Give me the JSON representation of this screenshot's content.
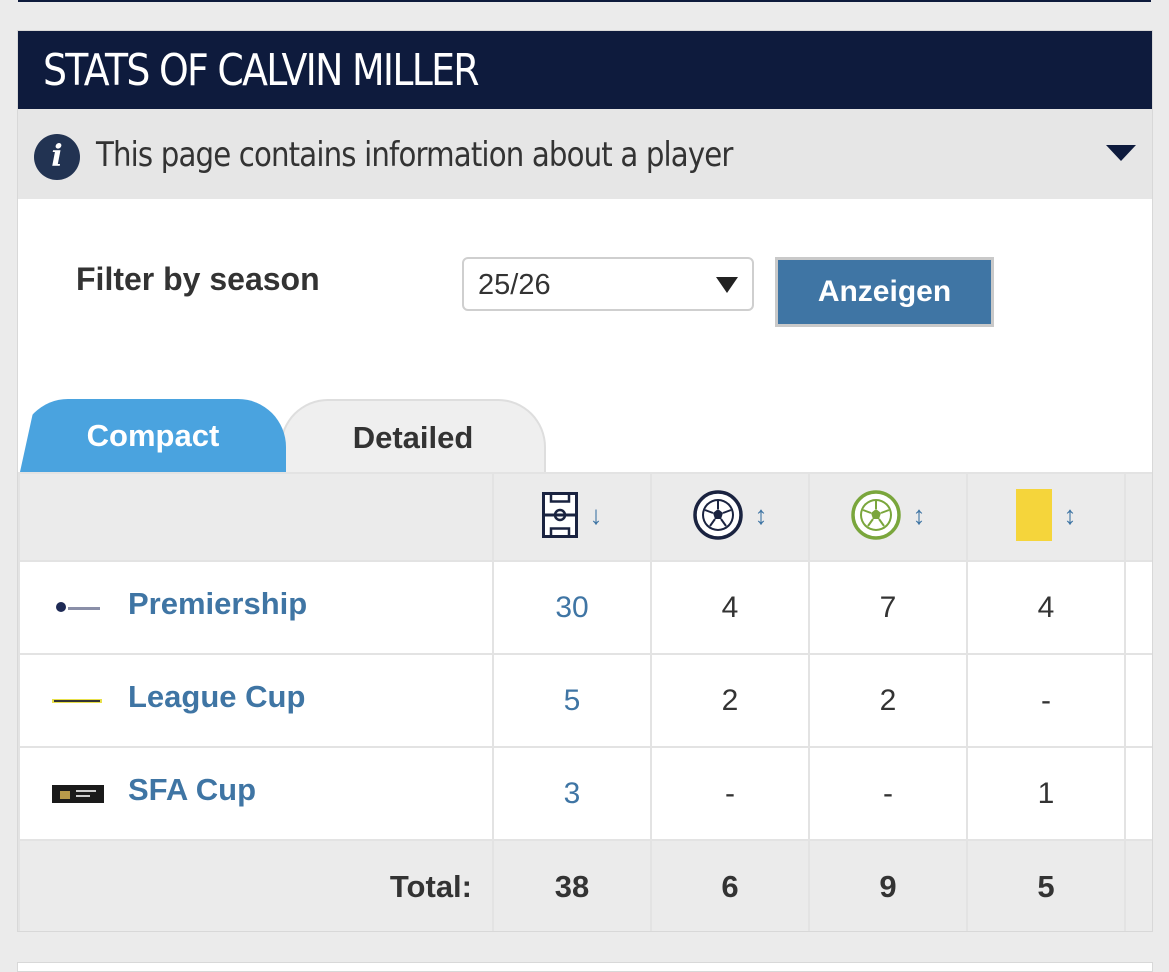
{
  "page": {
    "title": "STATS OF CALVIN MILLER",
    "info_text": "This page contains information about a player"
  },
  "filter": {
    "label": "Filter by season",
    "season_value": "25/26",
    "button_label": "Anzeigen"
  },
  "tabs": [
    {
      "label": "Compact",
      "active": true
    },
    {
      "label": "Detailed",
      "active": false
    }
  ],
  "table": {
    "columns": [
      {
        "icon": "pitch-appearances-icon",
        "sort": "↓"
      },
      {
        "icon": "ball-goals-icon",
        "sort": "↕"
      },
      {
        "icon": "ball-assists-icon",
        "sort": "↕"
      },
      {
        "icon": "yellow-card-icon",
        "sort": "↕"
      }
    ],
    "rows": [
      {
        "competition": "Premiership",
        "logo": "premiership-logo",
        "apps": "30",
        "goals": "4",
        "assists": "7",
        "yellow": "4"
      },
      {
        "competition": "League Cup",
        "logo": "league-cup-logo",
        "apps": "5",
        "goals": "2",
        "assists": "2",
        "yellow": "-"
      },
      {
        "competition": "SFA Cup",
        "logo": "sfa-cup-logo",
        "apps": "3",
        "goals": "-",
        "assists": "-",
        "yellow": "1"
      }
    ],
    "total": {
      "label": "Total:",
      "apps": "38",
      "goals": "6",
      "assists": "9",
      "yellow": "5"
    }
  },
  "colors": {
    "header_bg": "#0e1b3d",
    "accent": "#3f75a4",
    "tab_active": "#4aa3df",
    "yellow_card": "#f5d53b",
    "assist_green": "#7aa63c"
  }
}
